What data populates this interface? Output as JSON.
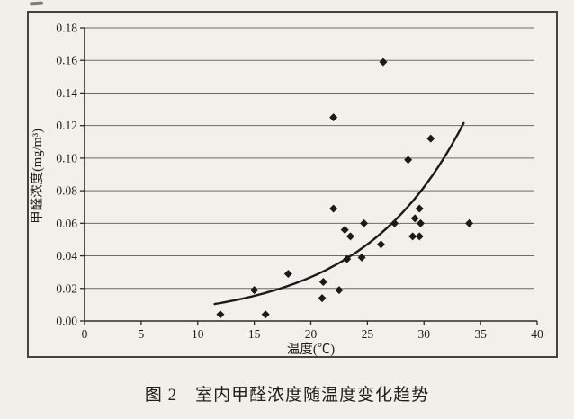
{
  "figure": {
    "caption": "图 2　室内甲醛浓度随温度变化趋势"
  },
  "chart_data": {
    "type": "scatter",
    "title": "",
    "xlabel": "温度(℃)",
    "ylabel": "甲醛浓度(mg/m³)",
    "xlim": [
      0,
      40
    ],
    "ylim": [
      0,
      0.18
    ],
    "xticks": [
      0,
      5,
      10,
      15,
      20,
      25,
      30,
      35,
      40
    ],
    "yticks": [
      0.0,
      0.02,
      0.04,
      0.06,
      0.08,
      0.1,
      0.12,
      0.14,
      0.16,
      0.18
    ],
    "grid": "horizontal",
    "legend": "none",
    "marker": "diamond",
    "points": [
      [
        12,
        0.004
      ],
      [
        15,
        0.019
      ],
      [
        16,
        0.004
      ],
      [
        18,
        0.029
      ],
      [
        21,
        0.014
      ],
      [
        21.1,
        0.024
      ],
      [
        22,
        0.069
      ],
      [
        22,
        0.125
      ],
      [
        22.5,
        0.019
      ],
      [
        23,
        0.056
      ],
      [
        23.2,
        0.038
      ],
      [
        23.5,
        0.052
      ],
      [
        24.5,
        0.039
      ],
      [
        24.7,
        0.06
      ],
      [
        26.2,
        0.047
      ],
      [
        26.4,
        0.159
      ],
      [
        27.4,
        0.06
      ],
      [
        28.6,
        0.099
      ],
      [
        29,
        0.052
      ],
      [
        29.2,
        0.063
      ],
      [
        29.6,
        0.052
      ],
      [
        29.6,
        0.069
      ],
      [
        29.7,
        0.06
      ],
      [
        30.6,
        0.112
      ],
      [
        34,
        0.06
      ]
    ],
    "trendline": {
      "type": "exponential",
      "formula": "y = a * exp(b * x)",
      "a": 0.0029,
      "b": 0.1115,
      "x_start": 11.5,
      "x_end": 33.5
    },
    "colors": {
      "marker": "#1a1a18",
      "trend": "#1a1a18",
      "grid": "#6b6b66",
      "axis": "#2a2a26",
      "text": "#1f1d1a"
    }
  }
}
